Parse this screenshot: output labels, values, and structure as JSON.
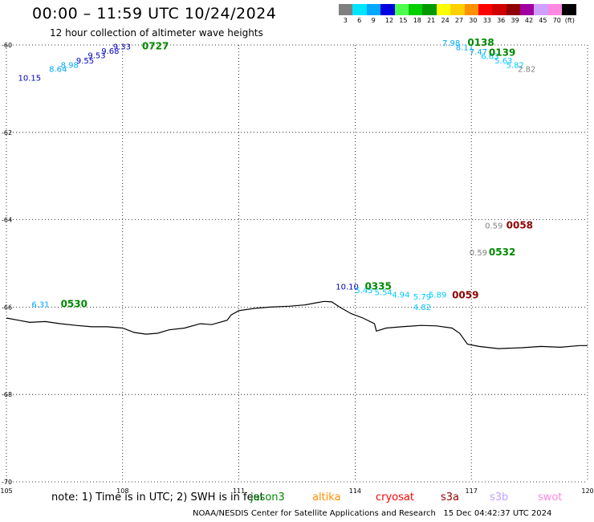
{
  "header": {
    "title": "00:00 – 11:59 UTC 10/24/2024",
    "subtitle": "12 hour collection of altimeter wave heights"
  },
  "legend": {
    "unit": "(ft)",
    "bins": [
      {
        "label": "3",
        "color": "#7f7f7f"
      },
      {
        "label": "6",
        "color": "#00e5ff"
      },
      {
        "label": "9",
        "color": "#00a8ff"
      },
      {
        "label": "12",
        "color": "#0000e0"
      },
      {
        "label": "15",
        "color": "#4cff4c"
      },
      {
        "label": "18",
        "color": "#00d000"
      },
      {
        "label": "21",
        "color": "#009a00"
      },
      {
        "label": "24",
        "color": "#ffff00"
      },
      {
        "label": "27",
        "color": "#ffd000"
      },
      {
        "label": "30",
        "color": "#ff9000"
      },
      {
        "label": "33",
        "color": "#ff0000"
      },
      {
        "label": "36",
        "color": "#d00000"
      },
      {
        "label": "39",
        "color": "#8f0000"
      },
      {
        "label": "42",
        "color": "#a000a0"
      },
      {
        "label": "45",
        "color": "#cfa0ff"
      },
      {
        "label": "70",
        "color": "#ff88e0"
      },
      {
        "label": "",
        "color": "#000000"
      }
    ]
  },
  "map": {
    "lon_range": [
      105,
      120
    ],
    "lat_range": [
      -70,
      -60
    ],
    "lon_labels": [
      "105",
      "108",
      "111",
      "114",
      "117",
      "120"
    ],
    "lat_labels": [
      "-60",
      "-62",
      "-64",
      "-66",
      "-68",
      "-70"
    ],
    "wave_heights": [
      {
        "text": "10.15",
        "lon": 105.3,
        "lat": -60.82,
        "color": "#0000c0"
      },
      {
        "text": "8.64",
        "lon": 106.1,
        "lat": -60.62,
        "color": "#00a8ff"
      },
      {
        "text": "8.98",
        "lon": 106.4,
        "lat": -60.52,
        "color": "#00a8ff"
      },
      {
        "text": "9.55",
        "lon": 106.8,
        "lat": -60.42,
        "color": "#0000c0"
      },
      {
        "text": "9.53",
        "lon": 107.1,
        "lat": -60.3,
        "color": "#0000c0"
      },
      {
        "text": "9.68",
        "lon": 107.45,
        "lat": -60.2,
        "color": "#0000c0"
      },
      {
        "text": "9.33",
        "lon": 107.75,
        "lat": -60.1,
        "color": "#0000c0"
      },
      {
        "text": "7.98",
        "lon": 116.25,
        "lat": -60.02,
        "color": "#00a8ff"
      },
      {
        "text": "8.11",
        "lon": 116.6,
        "lat": -60.12,
        "color": "#00a8ff"
      },
      {
        "text": "7.47",
        "lon": 116.95,
        "lat": -60.22,
        "color": "#00a8ff"
      },
      {
        "text": "6.63",
        "lon": 117.25,
        "lat": -60.32,
        "color": "#00c8ff"
      },
      {
        "text": "5.63",
        "lon": 117.6,
        "lat": -60.42,
        "color": "#00c8ff"
      },
      {
        "text": "5.82",
        "lon": 117.9,
        "lat": -60.52,
        "color": "#00c8ff"
      },
      {
        "text": "2.82",
        "lon": 118.2,
        "lat": -60.62,
        "color": "#7f7f7f"
      },
      {
        "text": "0.59",
        "lon": 117.35,
        "lat": -64.2,
        "color": "#7f7f7f"
      },
      {
        "text": "0.59",
        "lon": 116.95,
        "lat": -64.82,
        "color": "#7f7f7f"
      },
      {
        "text": "10.10",
        "lon": 113.5,
        "lat": -65.6,
        "color": "#0000c0"
      },
      {
        "text": "5.45",
        "lon": 114.0,
        "lat": -65.68,
        "color": "#00c8ff"
      },
      {
        "text": "5.54",
        "lon": 114.5,
        "lat": -65.73,
        "color": "#00c8ff"
      },
      {
        "text": "4.94",
        "lon": 114.95,
        "lat": -65.78,
        "color": "#00c8ff"
      },
      {
        "text": "5.79",
        "lon": 115.5,
        "lat": -65.83,
        "color": "#00c8ff"
      },
      {
        "text": "5.89",
        "lon": 115.9,
        "lat": -65.78,
        "color": "#00c8ff"
      },
      {
        "text": "4.82",
        "lon": 115.5,
        "lat": -66.07,
        "color": "#00c8ff"
      },
      {
        "text": "6.31",
        "lon": 105.65,
        "lat": -66.0,
        "color": "#00a8ff"
      }
    ],
    "pass_times": [
      {
        "text": "0727",
        "lon": 108.5,
        "lat": -60.1,
        "color": "#008800"
      },
      {
        "text": "0138",
        "lon": 116.9,
        "lat": -60.02,
        "color": "#008800"
      },
      {
        "text": "0139",
        "lon": 117.45,
        "lat": -60.25,
        "color": "#008800"
      },
      {
        "text": "0058",
        "lon": 117.9,
        "lat": -64.2,
        "color": "#8f0000"
      },
      {
        "text": "0532",
        "lon": 117.45,
        "lat": -64.82,
        "color": "#008800"
      },
      {
        "text": "0335",
        "lon": 114.25,
        "lat": -65.6,
        "color": "#008800"
      },
      {
        "text": "0059",
        "lon": 116.5,
        "lat": -65.8,
        "color": "#8f0000"
      },
      {
        "text": "0530",
        "lon": 106.4,
        "lat": -66.0,
        "color": "#008800"
      }
    ]
  },
  "footer": {
    "note": "note: 1) Time is in UTC; 2) SWH is in feet",
    "satellites": [
      {
        "name": "jason3",
        "color": "#008800"
      },
      {
        "name": "altika",
        "color": "#ff9000"
      },
      {
        "name": "cryosat",
        "color": "#ff0000"
      },
      {
        "name": "s3a",
        "color": "#8f0000"
      },
      {
        "name": "s3b",
        "color": "#c0a0ff"
      },
      {
        "name": "swot",
        "color": "#ff88e0"
      }
    ],
    "credit": "NOAA/NESDIS Center for Satellite Applications and Research",
    "timestamp": "15 Dec 04:42:37 UTC 2024"
  }
}
